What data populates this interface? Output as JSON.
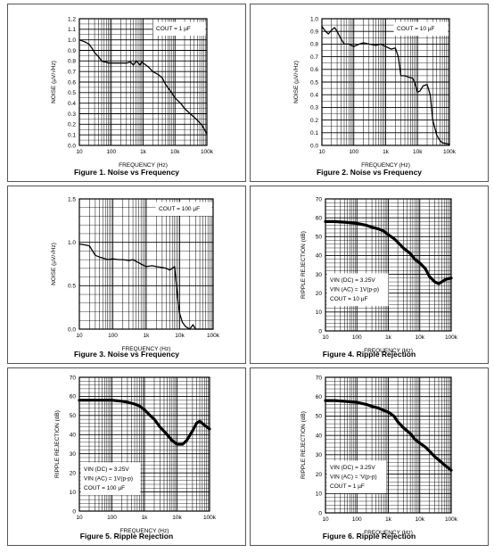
{
  "figures": [
    {
      "id": "fig1",
      "caption": "Figure 1. Noise vs Frequency",
      "chart_data": {
        "type": "line",
        "xscale": "log",
        "xlim": [
          10,
          100000
        ],
        "ylim": [
          0,
          1.2
        ],
        "xlabel": "FREQUENCY (Hz)",
        "ylabel": "NOISE (µV/√Hz)",
        "xticks": [
          "10",
          "100",
          "1k",
          "10k",
          "100k"
        ],
        "yticks": [
          "0.0",
          "0.1",
          "0.2",
          "0.3",
          "0.4",
          "0.5",
          "0.6",
          "0.7",
          "0.8",
          "0.9",
          "1.0",
          "1.1",
          "1.2"
        ],
        "annotation": [
          "COUT = 1 µF"
        ],
        "series": [
          {
            "x": [
              10,
              15,
              20,
              25,
              30,
              40,
              50,
              60,
              70,
              80,
              100,
              150,
              200,
              300,
              400,
              500,
              600,
              700,
              800,
              900,
              1000,
              1500,
              2000,
              3000,
              4000,
              5000,
              7000,
              10000,
              15000,
              20000,
              30000,
              50000,
              70000,
              100000
            ],
            "y": [
              1.0,
              0.98,
              0.96,
              0.92,
              0.88,
              0.84,
              0.8,
              0.79,
              0.79,
              0.78,
              0.78,
              0.78,
              0.78,
              0.78,
              0.79,
              0.76,
              0.8,
              0.78,
              0.76,
              0.79,
              0.78,
              0.74,
              0.7,
              0.67,
              0.64,
              0.58,
              0.52,
              0.45,
              0.4,
              0.35,
              0.3,
              0.24,
              0.19,
              0.11
            ]
          }
        ]
      }
    },
    {
      "id": "fig2",
      "caption": "Figure 2. Noise vs Frequency",
      "chart_data": {
        "type": "line",
        "xscale": "log",
        "xlim": [
          10,
          100000
        ],
        "ylim": [
          0,
          1.0
        ],
        "xlabel": "FREQUENCY (Hz)",
        "ylabel": "NOISE (µV/√Hz)",
        "xticks": [
          "10",
          "100",
          "1k",
          "10k",
          "100k"
        ],
        "yticks": [
          "0.0",
          "0.1",
          "0.2",
          "0.3",
          "0.4",
          "0.5",
          "0.6",
          "0.7",
          "0.8",
          "0.9",
          "1.0"
        ],
        "annotation": [
          "COUT = 10 µF"
        ],
        "series": [
          {
            "x": [
              10,
              13,
              16,
              20,
              25,
              30,
              40,
              50,
              70,
              100,
              150,
              200,
              300,
              500,
              700,
              1000,
              1500,
              2000,
              2500,
              3000,
              4000,
              5000,
              7000,
              8000,
              10000,
              12000,
              15000,
              20000,
              25000,
              30000,
              40000,
              50000,
              60000,
              100000
            ],
            "y": [
              0.94,
              0.9,
              0.88,
              0.91,
              0.93,
              0.9,
              0.84,
              0.8,
              0.8,
              0.78,
              0.8,
              0.81,
              0.8,
              0.79,
              0.8,
              0.78,
              0.76,
              0.77,
              0.7,
              0.55,
              0.55,
              0.54,
              0.53,
              0.5,
              0.42,
              0.43,
              0.47,
              0.48,
              0.4,
              0.2,
              0.08,
              0.04,
              0.02,
              0.01
            ]
          }
        ]
      }
    },
    {
      "id": "fig3",
      "caption": "Figure 3. Noise vs Frequency",
      "chart_data": {
        "type": "line",
        "xscale": "log",
        "xlim": [
          10,
          100000
        ],
        "ylim": [
          0,
          1.5
        ],
        "xlabel": "FREQUENCY (Hz)",
        "ylabel": "NOISE (µV/√Hz)",
        "xticks": [
          "10",
          "100",
          "1k",
          "10k",
          "100k"
        ],
        "yticks": [
          "0.0",
          "0.5",
          "1.0",
          "1.5"
        ],
        "annotation": [
          "COUT = 100 µF"
        ],
        "series": [
          {
            "x": [
              10,
              15,
              20,
              30,
              40,
              50,
              70,
              100,
              150,
              200,
              300,
              400,
              500,
              700,
              1000,
              1500,
              2000,
              3000,
              4000,
              5000,
              6000,
              7000,
              8000,
              9000,
              10000,
              12000,
              15000,
              20000,
              25000,
              30000,
              40000,
              100000
            ],
            "y": [
              0.98,
              0.97,
              0.96,
              0.85,
              0.83,
              0.82,
              0.8,
              0.81,
              0.8,
              0.8,
              0.79,
              0.8,
              0.78,
              0.75,
              0.72,
              0.73,
              0.72,
              0.71,
              0.7,
              0.68,
              0.7,
              0.72,
              0.5,
              0.3,
              0.18,
              0.08,
              0.03,
              0.0,
              0.05,
              0.0,
              0.0,
              0.0
            ]
          }
        ]
      }
    },
    {
      "id": "fig4",
      "caption": "Figure 4. Ripple Rejection",
      "chart_data": {
        "type": "line",
        "xscale": "log",
        "xlim": [
          10,
          100000
        ],
        "ylim": [
          0,
          70
        ],
        "xlabel": "FREQUENCY (Hz)",
        "ylabel": "RIPPLE REJECTION (dB)",
        "xticks": [
          "10",
          "100",
          "1k",
          "10k",
          "100k"
        ],
        "yticks": [
          "0",
          "10",
          "20",
          "30",
          "40",
          "50",
          "60",
          "70"
        ],
        "annotation": [
          "VIN (DC) = 3.25V",
          "VIN (AC) = 1V(p-p)",
          "COUT = 10 µF"
        ],
        "series": [
          {
            "x": [
              10,
              20,
              50,
              100,
              200,
              300,
              500,
              700,
              1000,
              1500,
              2000,
              3000,
              5000,
              7000,
              10000,
              15000,
              20000,
              30000,
              40000,
              50000,
              70000,
              100000
            ],
            "y": [
              58,
              58,
              57.5,
              57,
              56,
              55,
              54,
              53,
              51,
              49,
              47,
              44,
              41,
              38,
              36,
              33,
              29,
              26,
              25,
              26,
              27.5,
              28
            ]
          }
        ]
      }
    },
    {
      "id": "fig5",
      "caption": "Figure 5. Ripple Rejection",
      "chart_data": {
        "type": "line",
        "xscale": "log",
        "xlim": [
          10,
          100000
        ],
        "ylim": [
          0,
          70
        ],
        "xlabel": "FREQUENCY (Hz)",
        "ylabel": "RIPPLE REJECTION (dB)",
        "xticks": [
          "10",
          "100",
          "1k",
          "10k",
          "100k"
        ],
        "yticks": [
          "0",
          "10",
          "20",
          "30",
          "40",
          "50",
          "60",
          "70"
        ],
        "annotation": [
          "VIN (DC) = 3.25V",
          "VIN (AC) = 1V(p-p)",
          "COUT = 100 µF"
        ],
        "series": [
          {
            "x": [
              10,
              20,
              50,
              100,
              200,
              300,
              500,
              700,
              1000,
              1500,
              2000,
              3000,
              5000,
              7000,
              10000,
              15000,
              20000,
              30000,
              40000,
              50000,
              70000,
              100000
            ],
            "y": [
              58,
              58,
              58,
              58,
              57.5,
              57,
              56,
              55,
              53,
              50,
              48,
              44,
              40,
              37,
              35,
              35,
              37,
              42,
              46,
              47,
              45,
              43
            ]
          }
        ]
      }
    },
    {
      "id": "fig6",
      "caption": "Figure 6. Ripple Rejection",
      "chart_data": {
        "type": "line",
        "xscale": "log",
        "xlim": [
          10,
          100000
        ],
        "ylim": [
          0,
          70
        ],
        "xlabel": "FREQUENCY (Hz)",
        "ylabel": "RIPPLE REJECTION (dB)",
        "xticks": [
          "10",
          "100",
          "1k",
          "10k",
          "100k"
        ],
        "yticks": [
          "0",
          "10",
          "20",
          "30",
          "40",
          "50",
          "60",
          "70"
        ],
        "annotation": [
          "VIN (DC) = 3.25V",
          "VIN (AC) = 'V(p-p)",
          "COUT = 1 µF"
        ],
        "series": [
          {
            "x": [
              10,
              20,
              50,
              100,
              200,
              300,
              500,
              700,
              1000,
              1500,
              2000,
              3000,
              5000,
              7000,
              10000,
              15000,
              20000,
              30000,
              50000,
              70000,
              100000
            ],
            "y": [
              58,
              58,
              57.5,
              57,
              56,
              55,
              54,
              53,
              52,
              50,
              47,
              44,
              41,
              38,
              36,
              34,
              32,
              29,
              26,
              24,
              22
            ]
          }
        ]
      }
    }
  ]
}
